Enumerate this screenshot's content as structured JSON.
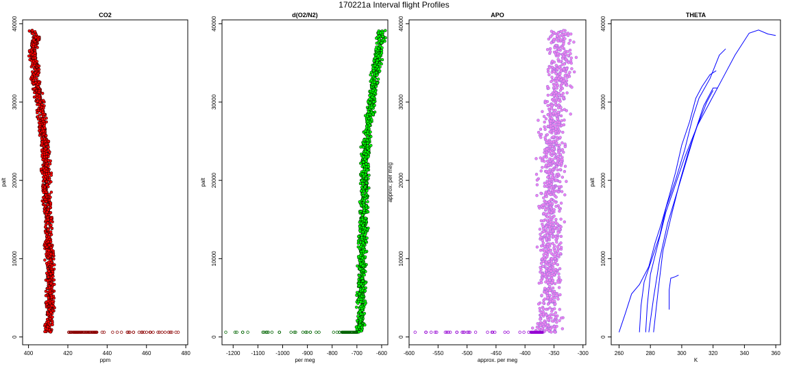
{
  "figure": {
    "title": "170221a   Interval flight Profiles"
  },
  "chart_data": [
    {
      "type": "scatter",
      "title": "CO2",
      "xlabel": "ppm",
      "ylabel": "palt",
      "xlim": [
        397,
        481
      ],
      "ylim": [
        -1000,
        40500
      ],
      "xticks": [
        400,
        420,
        440,
        460,
        480
      ],
      "yticks": [
        0,
        10000,
        20000,
        30000,
        40000
      ],
      "colors": {
        "fill": "#ff0000",
        "edge": "#000000",
        "surface": "#8b0000"
      },
      "series": [
        {
          "profile": [
            [
              401,
              39200
            ],
            [
              404,
              38500
            ],
            [
              402,
              36500
            ],
            [
              404,
              34000
            ],
            [
              403,
              33000
            ],
            [
              406,
              30000
            ],
            [
              407,
              27500
            ],
            [
              408,
              25000
            ],
            [
              409,
              22000
            ],
            [
              409,
              18000
            ],
            [
              410,
              15000
            ],
            [
              410,
              12000
            ],
            [
              411,
              9000
            ],
            [
              411,
              6000
            ],
            [
              411,
              3000
            ],
            [
              410,
              600
            ]
          ]
        },
        {
          "surface": [
            [
              420,
              600
            ],
            [
              435,
              600
            ],
            [
              477,
              600
            ]
          ]
        }
      ]
    },
    {
      "type": "scatter",
      "title": "d(O2/N2)",
      "xlabel": "per meg",
      "ylabel": "palt",
      "xlim": [
        -1245,
        -575
      ],
      "ylim": [
        -1000,
        40500
      ],
      "xticks": [
        -1200,
        -1100,
        -1000,
        -900,
        -800,
        -700,
        -600
      ],
      "yticks": [
        0,
        10000,
        20000,
        30000,
        40000
      ],
      "colors": {
        "fill": "#00ff00",
        "edge": "#000000",
        "surface": "#006400"
      },
      "series": [
        {
          "profile": [
            [
              -600,
              39200
            ],
            [
              -605,
              38000
            ],
            [
              -615,
              36000
            ],
            [
              -620,
              34500
            ],
            [
              -630,
              32000
            ],
            [
              -645,
              29000
            ],
            [
              -660,
              26000
            ],
            [
              -665,
              23000
            ],
            [
              -670,
              20000
            ],
            [
              -672,
              17000
            ],
            [
              -675,
              14000
            ],
            [
              -678,
              11000
            ],
            [
              -680,
              8000
            ],
            [
              -682,
              5000
            ],
            [
              -686,
              2000
            ],
            [
              -690,
              600
            ]
          ]
        },
        {
          "surface": [
            [
              -700,
              600
            ],
            [
              -760,
              600
            ],
            [
              -1240,
              600
            ]
          ]
        }
      ]
    },
    {
      "type": "scatter",
      "title": "APO",
      "xlabel": "approx. per meg",
      "ylabel": "approx. per meg",
      "xlim": [
        -600,
        -295
      ],
      "ylim": [
        -1000,
        40500
      ],
      "xticks": [
        -600,
        -550,
        -500,
        -450,
        -400,
        -350,
        -300
      ],
      "yticks": [
        0,
        10000,
        20000,
        30000,
        40000
      ],
      "colors": {
        "fill": "#ee82ee",
        "edge": "#9370db",
        "surface": "#9400d3"
      },
      "series": [
        {
          "profile": [
            [
              -340,
              39200
            ],
            [
              -340,
              37500
            ],
            [
              -338,
              35500
            ],
            [
              -340,
              33000
            ],
            [
              -345,
              30000
            ],
            [
              -350,
              27000
            ],
            [
              -352,
              24000
            ],
            [
              -354,
              21000
            ],
            [
              -355,
              18000
            ],
            [
              -356,
              15000
            ],
            [
              -357,
              12000
            ],
            [
              -357,
              9000
            ],
            [
              -358,
              6000
            ],
            [
              -360,
              3000
            ],
            [
              -362,
              600
            ]
          ]
        },
        {
          "surface": [
            [
              -370,
              600
            ],
            [
              -390,
              600
            ],
            [
              -590,
              600
            ]
          ]
        }
      ]
    },
    {
      "type": "line",
      "title": "THETA",
      "xlabel": "K",
      "ylabel": "palt",
      "xlim": [
        255,
        363
      ],
      "ylim": [
        -1000,
        40500
      ],
      "xticks": [
        260,
        280,
        300,
        320,
        340,
        360
      ],
      "yticks": [
        0,
        10000,
        20000,
        30000,
        40000
      ],
      "colors": {
        "line": "#0000ff"
      },
      "series": [
        {
          "profile": [
            [
              260,
              600
            ],
            [
              264,
              3000
            ],
            [
              268,
              5500
            ],
            [
              273,
              6700
            ],
            [
              279,
              9000
            ],
            [
              283,
              12000
            ],
            [
              287,
              14500
            ],
            [
              292,
              18000
            ],
            [
              296,
              21000
            ],
            [
              300,
              24500
            ],
            [
              305,
              27500
            ],
            [
              309,
              30500
            ],
            [
              313,
              32000
            ],
            [
              318,
              33500
            ],
            [
              322,
              34000
            ]
          ]
        },
        {
          "profile": [
            [
              273,
              600
            ],
            [
              274,
              4000
            ],
            [
              276,
              7000
            ],
            [
              281,
              10000
            ],
            [
              286,
              13000
            ],
            [
              290,
              16500
            ],
            [
              296,
              20000
            ],
            [
              302,
              24000
            ],
            [
              307,
              28000
            ],
            [
              311,
              30500
            ],
            [
              318,
              33000
            ],
            [
              324,
              36000
            ],
            [
              328,
              36800
            ]
          ]
        },
        {
          "profile": [
            [
              277,
              600
            ],
            [
              278,
              4000
            ],
            [
              280,
              8000
            ],
            [
              285,
              12000
            ],
            [
              290,
              16000
            ],
            [
              296,
              19500
            ],
            [
              302,
              23000
            ],
            [
              310,
              27000
            ],
            [
              318,
              30000
            ],
            [
              326,
              33000
            ],
            [
              334,
              36000
            ],
            [
              343,
              38800
            ],
            [
              349,
              39200
            ],
            [
              355,
              38700
            ],
            [
              360,
              38500
            ]
          ]
        },
        {
          "profile": [
            [
              279,
              600
            ],
            [
              282,
              5000
            ],
            [
              286,
              10000
            ],
            [
              291,
              14500
            ],
            [
              297,
              18500
            ],
            [
              303,
              22500
            ],
            [
              309,
              26500
            ],
            [
              314,
              29500
            ],
            [
              320,
              31800
            ],
            [
              323,
              31800
            ]
          ]
        },
        {
          "profile": [
            [
              282,
              600
            ],
            [
              285,
              6000
            ],
            [
              288,
              11000
            ],
            [
              294,
              16000
            ],
            [
              299,
              20000
            ],
            [
              304,
              23500
            ],
            [
              310,
              27000
            ],
            [
              316,
              30000
            ],
            [
              320,
              31500
            ]
          ]
        },
        {
          "profile": [
            [
              292,
              3500
            ],
            [
              292,
              6000
            ],
            [
              293,
              7500
            ],
            [
              296,
              7700
            ],
            [
              298,
              7900
            ]
          ]
        }
      ]
    }
  ]
}
